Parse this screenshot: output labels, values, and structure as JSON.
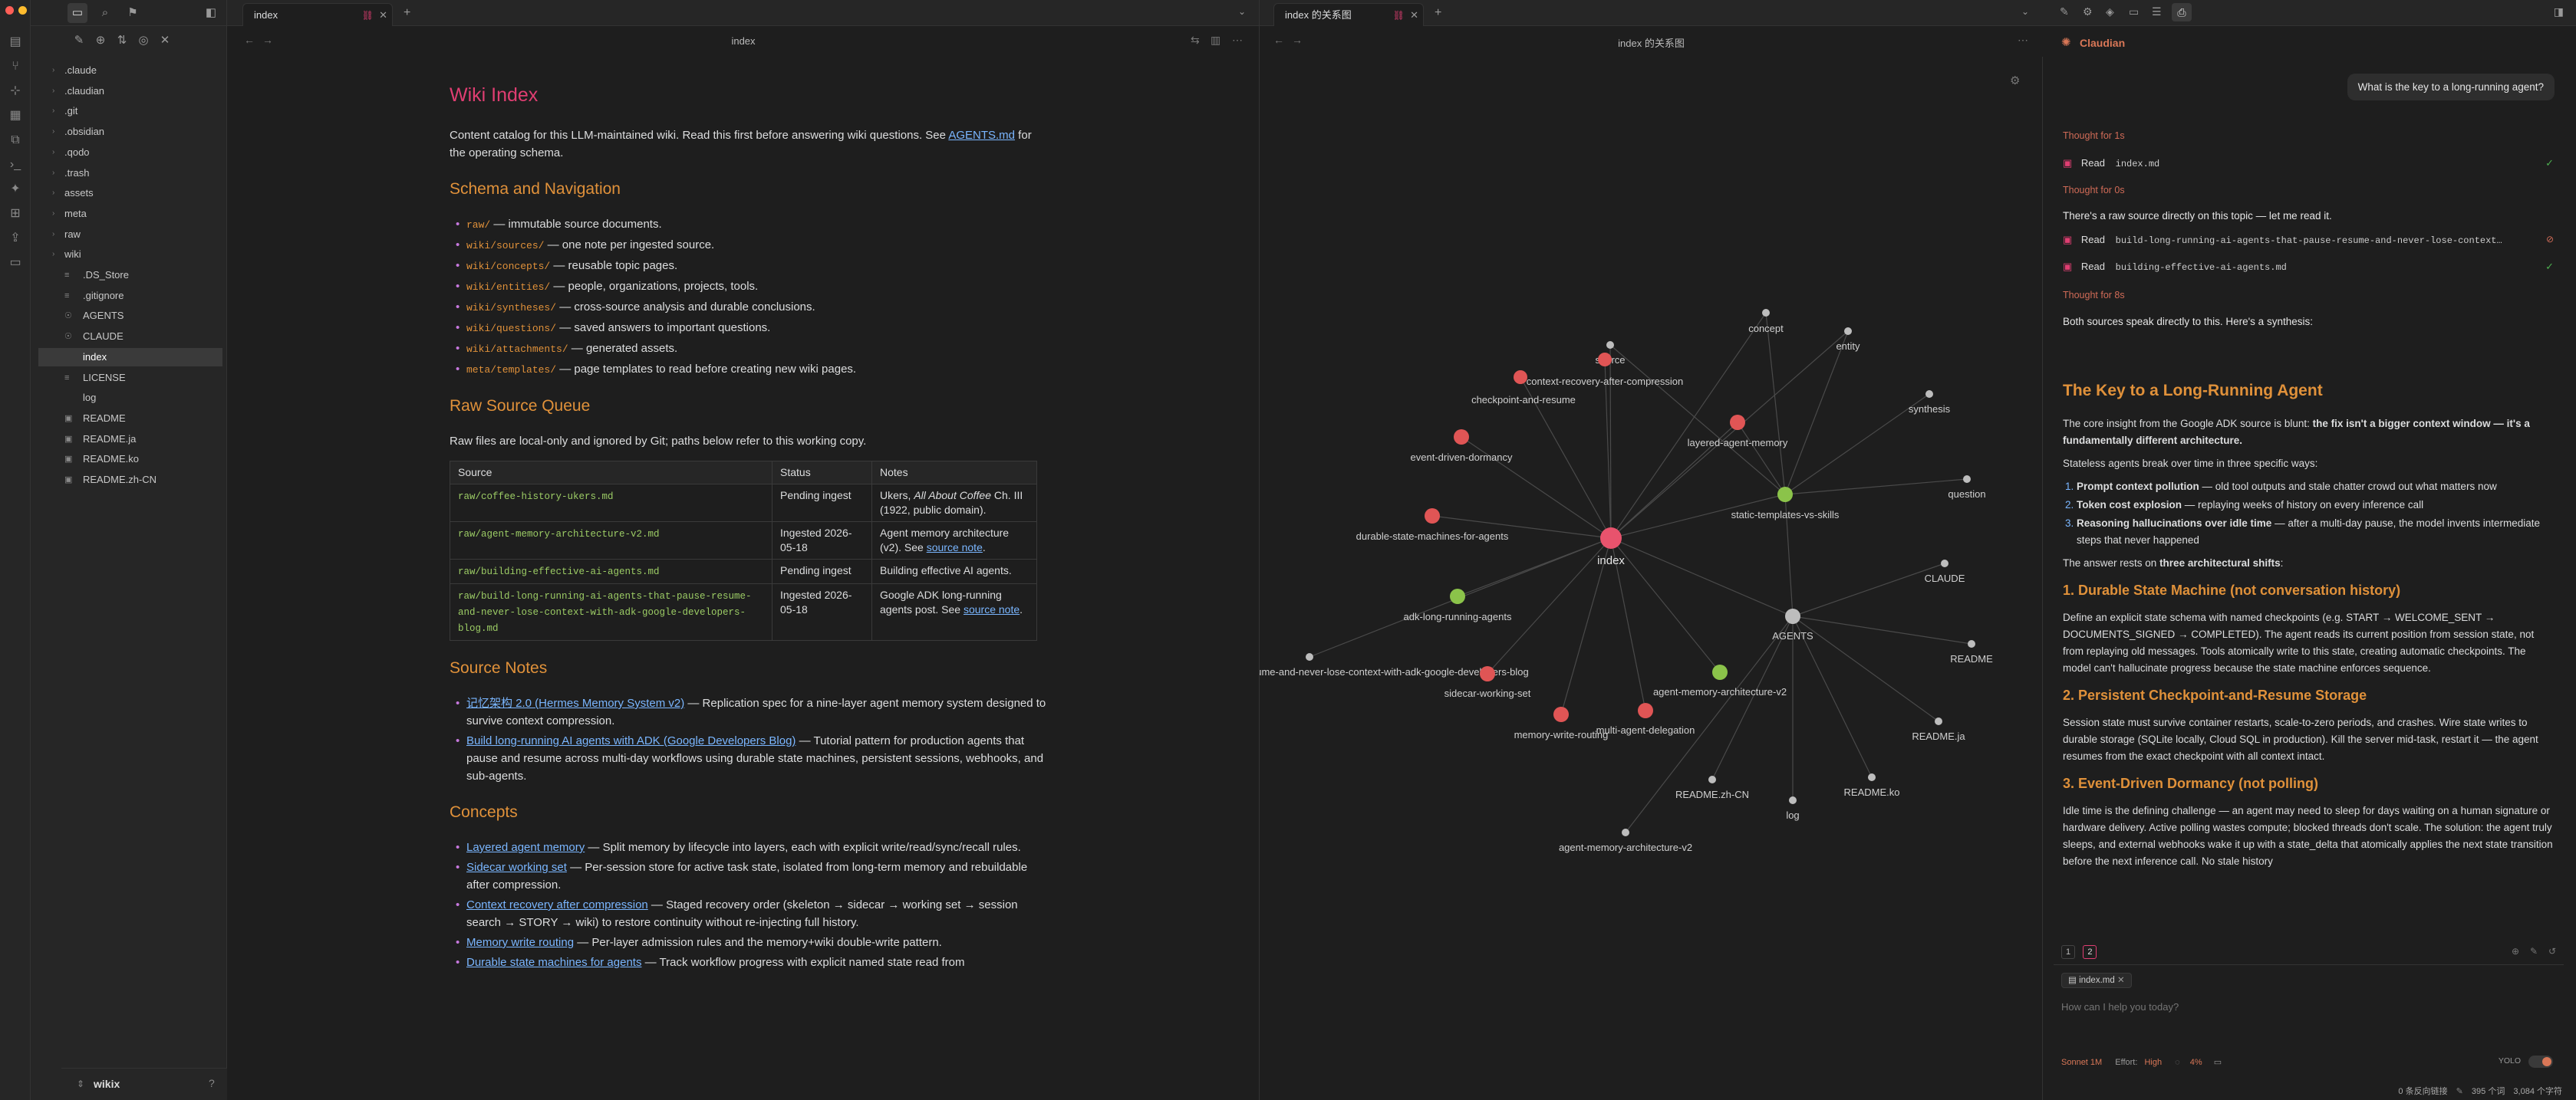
{
  "ribbon": {
    "icons": [
      "files-icon",
      "git-icon",
      "graph-icon",
      "calendar-icon",
      "copy-icon",
      "terminal-icon",
      "bot-icon",
      "templates-icon",
      "publish-icon",
      "shell-icon"
    ]
  },
  "sidebar": {
    "items": [
      {
        "label": ".claude",
        "type": "folder"
      },
      {
        "label": ".claudian",
        "type": "folder"
      },
      {
        "label": ".git",
        "type": "folder"
      },
      {
        "label": ".obsidian",
        "type": "folder"
      },
      {
        "label": ".qodo",
        "type": "folder"
      },
      {
        "label": ".trash",
        "type": "folder"
      },
      {
        "label": "assets",
        "type": "folder"
      },
      {
        "label": "meta",
        "type": "folder"
      },
      {
        "label": "raw",
        "type": "folder"
      },
      {
        "label": "wiki",
        "type": "folder"
      },
      {
        "label": ".DS_Store",
        "type": "file",
        "icon": "≡"
      },
      {
        "label": ".gitignore",
        "type": "file",
        "icon": "≡"
      },
      {
        "label": "AGENTS",
        "type": "file",
        "icon": "☉"
      },
      {
        "label": "CLAUDE",
        "type": "file",
        "icon": "☉"
      },
      {
        "label": "index",
        "type": "file",
        "icon": "",
        "active": true
      },
      {
        "label": "LICENSE",
        "type": "file",
        "icon": "≡"
      },
      {
        "label": "log",
        "type": "file",
        "icon": ""
      },
      {
        "label": "README",
        "type": "file",
        "icon": "MD"
      },
      {
        "label": "README.ja",
        "type": "file",
        "icon": "MD"
      },
      {
        "label": "README.ko",
        "type": "file",
        "icon": "MD"
      },
      {
        "label": "README.zh-CN",
        "type": "file",
        "icon": "MD"
      }
    ],
    "vault_name": "wikix"
  },
  "editor": {
    "tab_label": "index",
    "nav_title": "index",
    "h1": "Wiki Index",
    "intro_pre": "Content catalog for this LLM-maintained wiki. Read this first before answering wiki questions. See ",
    "intro_link": "AGENTS.md",
    "intro_post": " for the operating schema.",
    "h_schema": "Schema and Navigation",
    "schema": [
      {
        "code": "raw/",
        "text": " — immutable source documents."
      },
      {
        "code": "wiki/sources/",
        "text": " — one note per ingested source."
      },
      {
        "code": "wiki/concepts/",
        "text": " — reusable topic pages."
      },
      {
        "code": "wiki/entities/",
        "text": " — people, organizations, projects, tools."
      },
      {
        "code": "wiki/syntheses/",
        "text": " — cross-source analysis and durable conclusions."
      },
      {
        "code": "wiki/questions/",
        "text": " — saved answers to important questions."
      },
      {
        "code": "wiki/attachments/",
        "text": " — generated assets."
      },
      {
        "code": "meta/templates/",
        "text": " — page templates to read before creating new wiki pages."
      }
    ],
    "h_queue": "Raw Source Queue",
    "queue_intro": "Raw files are local-only and ignored by Git; paths below refer to this working copy.",
    "table": {
      "headers": [
        "Source",
        "Status",
        "Notes"
      ],
      "rows": [
        {
          "source": "raw/coffee-history-ukers.md",
          "status": "Pending ingest",
          "notes_pre": "Ukers, ",
          "notes_em": "All About Coffee",
          "notes_post": " Ch. III (1922, public domain).",
          "link": ""
        },
        {
          "source": "raw/agent-memory-architecture-v2.md",
          "status": "Ingested 2026-05-18",
          "notes_pre": "Agent memory architecture (v2). See ",
          "notes_em": "",
          "notes_post": "",
          "link": "source note",
          "tail": "."
        },
        {
          "source": "raw/building-effective-ai-agents.md",
          "status": "Pending ingest",
          "notes_pre": "Building effective AI agents.",
          "notes_em": "",
          "notes_post": "",
          "link": ""
        },
        {
          "source": "raw/build-long-running-ai-agents-that-pause-resume-and-never-lose-context-with-adk-google-developers-blog.md",
          "status": "Ingested 2026-05-18",
          "notes_pre": "Google ADK long-running agents post. See ",
          "notes_em": "",
          "notes_post": "",
          "link": "source note",
          "tail": "."
        }
      ]
    },
    "h_notes": "Source Notes",
    "notes": [
      {
        "link": "记忆架构 2.0 (Hermes Memory System v2)",
        "text": " — Replication spec for a nine-layer agent memory system designed to survive context compression."
      },
      {
        "link": "Build long-running AI agents with ADK (Google Developers Blog)",
        "text": " — Tutorial pattern for production agents that pause and resume across multi-day workflows using durable state machines, persistent sessions, webhooks, and sub-agents."
      }
    ],
    "h_concepts": "Concepts",
    "concepts": [
      {
        "link": "Layered agent memory",
        "text": " — Split memory by lifecycle into layers, each with explicit write/read/sync/recall rules."
      },
      {
        "link": "Sidecar working set",
        "text": " — Per-session store for active task state, isolated from long-term memory and rebuildable after compression."
      },
      {
        "link": "Context recovery after compression",
        "text": " — Staged recovery order (skeleton → sidecar → working set → session search → STORY → wiki) to restore continuity without re-injecting full history."
      },
      {
        "link": "Memory write routing",
        "text": " — Per-layer admission rules and the memory+wiki double-write pattern."
      },
      {
        "link": "Durable state machines for agents",
        "text": " — Track workflow progress with explicit named state read from"
      }
    ]
  },
  "graph": {
    "tab_label": "index 的关系图",
    "nav_title": "index 的关系图",
    "nodes": [
      {
        "id": "index",
        "label": "index",
        "type": "center"
      },
      {
        "id": "source",
        "label": "source",
        "type": "gray"
      },
      {
        "id": "concept",
        "label": "concept",
        "type": "gray"
      },
      {
        "id": "entity",
        "label": "entity",
        "type": "gray"
      },
      {
        "id": "synthesis",
        "label": "synthesis",
        "type": "gray"
      },
      {
        "id": "question",
        "label": "question",
        "type": "gray"
      },
      {
        "id": "CLAUDE",
        "label": "CLAUDE",
        "type": "gray"
      },
      {
        "id": "AGENTS",
        "label": "AGENTS",
        "type": "gray-big"
      },
      {
        "id": "README",
        "label": "README",
        "type": "gray"
      },
      {
        "id": "README.ja",
        "label": "README.ja",
        "type": "gray"
      },
      {
        "id": "README.ko",
        "label": "README.ko",
        "type": "gray"
      },
      {
        "id": "README.zh-CN",
        "label": "README.zh-CN",
        "type": "gray"
      },
      {
        "id": "log",
        "label": "log",
        "type": "gray"
      },
      {
        "id": "agent-memory-architecture-v2-raw",
        "label": "agent-memory-architecture-v2",
        "type": "gray"
      },
      {
        "id": "context-recovery-after-compression",
        "label": "context-recovery-after-compression",
        "type": "red"
      },
      {
        "id": "checkpoint-and-resume",
        "label": "checkpoint-and-resume",
        "type": "red"
      },
      {
        "id": "layered-agent-memory",
        "label": "layered-agent-memory",
        "type": "red"
      },
      {
        "id": "event-driven-dormancy",
        "label": "event-driven-dormancy",
        "type": "red"
      },
      {
        "id": "static-templates-vs-skills",
        "label": "static-templates-vs-skills",
        "type": "green"
      },
      {
        "id": "durable-state-machines-for-agents",
        "label": "durable-state-machines-for-agents",
        "type": "red"
      },
      {
        "id": "adk-long-running-agents",
        "label": "adk-long-running-agents",
        "type": "green"
      },
      {
        "id": "blog",
        "label": "ume-and-never-lose-context-with-adk-google-developers-blog",
        "type": "gray"
      },
      {
        "id": "sidecar-working-set",
        "label": "sidecar-working-set",
        "type": "red"
      },
      {
        "id": "agent-memory-architecture-v2",
        "label": "agent-memory-architecture-v2",
        "type": "green"
      },
      {
        "id": "memory-write-routing",
        "label": "memory-write-routing",
        "type": "red"
      },
      {
        "id": "multi-agent-delegation",
        "label": "multi-agent-delegation",
        "type": "red"
      }
    ]
  },
  "claudian": {
    "title": "Claudian",
    "user_msg": "What is the key to a long-running agent?",
    "thought1": "Thought for 1s",
    "read_label": "Read",
    "read1": "index.md",
    "thought2": "Thought for 0s",
    "line1": "There's a raw source directly on this topic — let me read it.",
    "read2": "build-long-running-ai-agents-that-pause-resume-and-never-lose-context…",
    "read3": "building-effective-ai-agents.md",
    "thought3": "Thought for 8s",
    "line2": "Both sources speak directly to this. Here's a synthesis:",
    "answer": {
      "h1": "The Key to a Long-Running Agent",
      "p1_pre": "The core insight from the Google ADK source is blunt: ",
      "p1_strong": "the fix isn't a bigger context window — it's a fundamentally different architecture.",
      "p2": "Stateless agents break over time in three specific ways:",
      "breaks": [
        {
          "b": "Prompt context pollution",
          "t": " — old tool outputs and stale chatter crowd out what matters now"
        },
        {
          "b": "Token cost explosion",
          "t": " — replaying weeks of history on every inference call"
        },
        {
          "b": "Reasoning hallucinations over idle time",
          "t": " — after a multi-day pause, the model invents intermediate steps that never happened"
        }
      ],
      "p3_pre": "The answer rests on ",
      "p3_strong": "three architectural shifts",
      "p3_post": ":",
      "h2a": "1. Durable State Machine (not conversation history)",
      "pa": "Define an explicit state schema with named checkpoints (e.g. START → WELCOME_SENT → DOCUMENTS_SIGNED → COMPLETED). The agent reads its current position from session state, not from replaying old messages. Tools atomically write to this state, creating automatic checkpoints. The model can't hallucinate progress because the state machine enforces sequence.",
      "h2b": "2. Persistent Checkpoint-and-Resume Storage",
      "pb": "Session state must survive container restarts, scale-to-zero periods, and crashes. Wire state writes to durable storage (SQLite locally, Cloud SQL in production). Kill the server mid-task, restart it — the agent resumes from the exact checkpoint with all context intact.",
      "h2c": "3. Event-Driven Dormancy (not polling)",
      "pc": "Idle time is the defining challenge — an agent may need to sleep for days waiting on a human signature or hardware delivery. Active polling wastes compute; blocked threads don't scale. The solution: the agent truly sleeps, and external webhooks wake it up with a state_delta that atomically applies the next state transition before the next inference call. No stale history"
    },
    "pages": [
      "1",
      "2"
    ],
    "chip": "index.md",
    "placeholder": "How can I help you today?",
    "model": "Sonnet 1M",
    "effort_label": "Effort:",
    "effort": "High",
    "context_pct": "4%",
    "yolo": "YOLO"
  },
  "status": {
    "backlinks": "0 条反向链接",
    "words": "395 个词",
    "chars": "3,084 个字符"
  }
}
